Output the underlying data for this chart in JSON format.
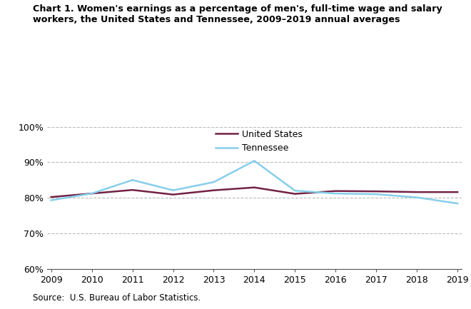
{
  "years": [
    2009,
    2010,
    2011,
    2012,
    2013,
    2014,
    2015,
    2016,
    2017,
    2018,
    2019
  ],
  "us_values": [
    80.2,
    81.2,
    82.2,
    80.9,
    82.1,
    82.9,
    81.1,
    81.9,
    81.8,
    81.6,
    81.6
  ],
  "tn_values": [
    79.3,
    81.2,
    85.0,
    82.1,
    84.4,
    90.4,
    82.0,
    81.2,
    81.0,
    80.1,
    78.4
  ],
  "us_color": "#722244",
  "tn_color": "#87CEEB",
  "title_line1": "Chart 1. Women's earnings as a percentage of men's, full-time wage and salary",
  "title_line2": "workers, the United States and Tennessee, 2009–2019 annual averages",
  "legend_us": "United States",
  "legend_tn": "Tennessee",
  "source": "Source:  U.S. Bureau of Labor Statistics.",
  "ylim": [
    60,
    100
  ],
  "yticks": [
    60,
    70,
    80,
    90,
    100
  ],
  "ytick_labels": [
    "60%",
    "70%",
    "80%",
    "90%",
    "100%"
  ],
  "xlim_min": 2009,
  "xlim_max": 2019,
  "linewidth": 1.8,
  "grid_color": "#bbbbbb",
  "grid_style": "--"
}
